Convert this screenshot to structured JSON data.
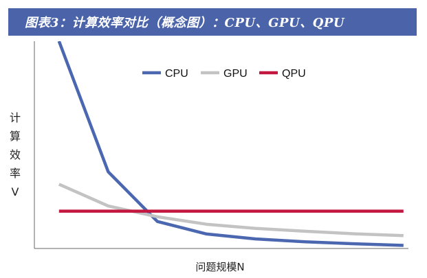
{
  "header": {
    "title": "图表3：计算效率对比（概念图）：CPU、GPU、QPU",
    "bg_color": "#4a63a9"
  },
  "chart_data": {
    "type": "line",
    "title": "",
    "xlabel": "问题规模N",
    "ylabel": "计\n算\n效\n率\nV",
    "x": [
      1,
      2,
      3,
      4,
      5,
      6,
      7,
      8
    ],
    "xlim": [
      0.5,
      8.1
    ],
    "ylim": [
      0,
      100
    ],
    "grid": false,
    "legend_position": "top-center",
    "series": [
      {
        "name": "CPU",
        "color": "#4b67b0",
        "values": [
          100,
          37.0,
          13.0,
          7.0,
          4.6,
          3.2,
          2.3,
          1.5
        ]
      },
      {
        "name": "GPU",
        "color": "#c3c3c3",
        "values": [
          31.0,
          20.5,
          15.3,
          11.7,
          9.7,
          8.3,
          7.1,
          6.2
        ]
      },
      {
        "name": "QPU",
        "color": "#c3173f",
        "values": [
          18.0,
          18.0,
          18.0,
          18.0,
          18.0,
          18.0,
          18.0,
          18.0
        ]
      }
    ]
  }
}
